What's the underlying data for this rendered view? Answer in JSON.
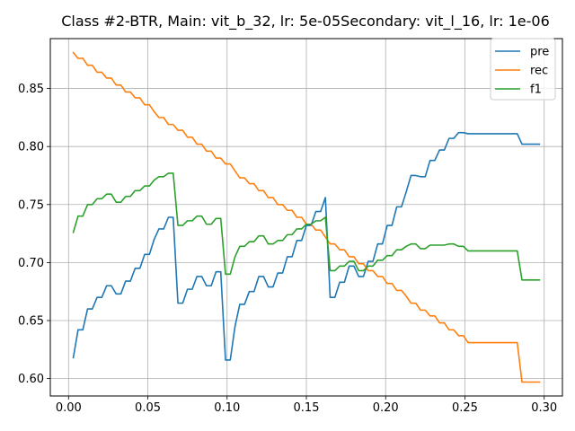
{
  "chart_data": {
    "type": "line",
    "title": "Class #2-BTR, Main: vit_b_32, lr: 5e-05Secondary: vit_l_16, lr: 1e-06",
    "xlabel": "",
    "ylabel": "",
    "xlim": [
      -0.0115,
      0.3115
    ],
    "ylim": [
      0.585,
      0.893
    ],
    "xticks": [
      0.0,
      0.05,
      0.1,
      0.15,
      0.2,
      0.25,
      0.3
    ],
    "xtick_labels": [
      "0.00",
      "0.05",
      "0.10",
      "0.15",
      "0.20",
      "0.25",
      "0.30"
    ],
    "yticks": [
      0.6,
      0.65,
      0.7,
      0.75,
      0.8,
      0.85
    ],
    "ytick_labels": [
      "0.60",
      "0.65",
      "0.70",
      "0.75",
      "0.80",
      "0.85"
    ],
    "grid": true,
    "legend_position": "top-right",
    "series": [
      {
        "name": "pre",
        "color": "#1f77b4",
        "points": [
          [
            0.003,
            0.618
          ],
          [
            0.006,
            0.642
          ],
          [
            0.009,
            0.642
          ],
          [
            0.012,
            0.66
          ],
          [
            0.015,
            0.66
          ],
          [
            0.018,
            0.67
          ],
          [
            0.021,
            0.67
          ],
          [
            0.024,
            0.68
          ],
          [
            0.027,
            0.68
          ],
          [
            0.03,
            0.673
          ],
          [
            0.033,
            0.673
          ],
          [
            0.036,
            0.684
          ],
          [
            0.039,
            0.684
          ],
          [
            0.042,
            0.695
          ],
          [
            0.045,
            0.695
          ],
          [
            0.048,
            0.707
          ],
          [
            0.051,
            0.707
          ],
          [
            0.054,
            0.72
          ],
          [
            0.057,
            0.729
          ],
          [
            0.06,
            0.729
          ],
          [
            0.063,
            0.739
          ],
          [
            0.066,
            0.739
          ],
          [
            0.069,
            0.665
          ],
          [
            0.072,
            0.665
          ],
          [
            0.075,
            0.677
          ],
          [
            0.078,
            0.677
          ],
          [
            0.081,
            0.688
          ],
          [
            0.084,
            0.688
          ],
          [
            0.087,
            0.68
          ],
          [
            0.09,
            0.68
          ],
          [
            0.093,
            0.692
          ],
          [
            0.096,
            0.692
          ],
          [
            0.099,
            0.616
          ],
          [
            0.102,
            0.616
          ],
          [
            0.105,
            0.645
          ],
          [
            0.108,
            0.664
          ],
          [
            0.111,
            0.664
          ],
          [
            0.114,
            0.675
          ],
          [
            0.117,
            0.675
          ],
          [
            0.12,
            0.688
          ],
          [
            0.123,
            0.688
          ],
          [
            0.126,
            0.679
          ],
          [
            0.129,
            0.679
          ],
          [
            0.132,
            0.691
          ],
          [
            0.135,
            0.691
          ],
          [
            0.138,
            0.705
          ],
          [
            0.141,
            0.705
          ],
          [
            0.144,
            0.719
          ],
          [
            0.147,
            0.719
          ],
          [
            0.15,
            0.732
          ],
          [
            0.153,
            0.732
          ],
          [
            0.156,
            0.744
          ],
          [
            0.159,
            0.744
          ],
          [
            0.162,
            0.756
          ],
          [
            0.165,
            0.67
          ],
          [
            0.168,
            0.67
          ],
          [
            0.171,
            0.683
          ],
          [
            0.174,
            0.683
          ],
          [
            0.177,
            0.697
          ],
          [
            0.18,
            0.697
          ],
          [
            0.183,
            0.688
          ],
          [
            0.186,
            0.688
          ],
          [
            0.189,
            0.701
          ],
          [
            0.192,
            0.701
          ],
          [
            0.195,
            0.716
          ],
          [
            0.198,
            0.716
          ],
          [
            0.201,
            0.732
          ],
          [
            0.204,
            0.732
          ],
          [
            0.207,
            0.748
          ],
          [
            0.21,
            0.748
          ],
          [
            0.213,
            0.761
          ],
          [
            0.216,
            0.775
          ],
          [
            0.219,
            0.775
          ],
          [
            0.222,
            0.774
          ],
          [
            0.225,
            0.774
          ],
          [
            0.228,
            0.788
          ],
          [
            0.231,
            0.788
          ],
          [
            0.234,
            0.797
          ],
          [
            0.237,
            0.797
          ],
          [
            0.24,
            0.807
          ],
          [
            0.243,
            0.807
          ],
          [
            0.246,
            0.812
          ],
          [
            0.249,
            0.812
          ],
          [
            0.252,
            0.811
          ],
          [
            0.256,
            0.811
          ],
          [
            0.26,
            0.811
          ],
          [
            0.265,
            0.811
          ],
          [
            0.27,
            0.811
          ],
          [
            0.275,
            0.811
          ],
          [
            0.28,
            0.811
          ],
          [
            0.283,
            0.811
          ],
          [
            0.286,
            0.802
          ],
          [
            0.29,
            0.802
          ],
          [
            0.294,
            0.802
          ],
          [
            0.297,
            0.802
          ]
        ]
      },
      {
        "name": "rec",
        "color": "#ff7f0e",
        "points": [
          [
            0.003,
            0.881
          ],
          [
            0.006,
            0.876
          ],
          [
            0.009,
            0.876
          ],
          [
            0.012,
            0.87
          ],
          [
            0.015,
            0.87
          ],
          [
            0.018,
            0.864
          ],
          [
            0.021,
            0.864
          ],
          [
            0.024,
            0.859
          ],
          [
            0.027,
            0.859
          ],
          [
            0.03,
            0.853
          ],
          [
            0.033,
            0.853
          ],
          [
            0.036,
            0.847
          ],
          [
            0.039,
            0.847
          ],
          [
            0.042,
            0.842
          ],
          [
            0.045,
            0.842
          ],
          [
            0.048,
            0.836
          ],
          [
            0.051,
            0.836
          ],
          [
            0.054,
            0.83
          ],
          [
            0.057,
            0.825
          ],
          [
            0.06,
            0.825
          ],
          [
            0.063,
            0.819
          ],
          [
            0.066,
            0.819
          ],
          [
            0.069,
            0.814
          ],
          [
            0.072,
            0.814
          ],
          [
            0.075,
            0.808
          ],
          [
            0.078,
            0.808
          ],
          [
            0.081,
            0.802
          ],
          [
            0.084,
            0.802
          ],
          [
            0.087,
            0.796
          ],
          [
            0.09,
            0.796
          ],
          [
            0.093,
            0.79
          ],
          [
            0.096,
            0.79
          ],
          [
            0.099,
            0.785
          ],
          [
            0.102,
            0.785
          ],
          [
            0.105,
            0.779
          ],
          [
            0.108,
            0.773
          ],
          [
            0.111,
            0.773
          ],
          [
            0.114,
            0.768
          ],
          [
            0.117,
            0.768
          ],
          [
            0.12,
            0.762
          ],
          [
            0.123,
            0.762
          ],
          [
            0.126,
            0.756
          ],
          [
            0.129,
            0.756
          ],
          [
            0.132,
            0.75
          ],
          [
            0.135,
            0.75
          ],
          [
            0.138,
            0.745
          ],
          [
            0.141,
            0.745
          ],
          [
            0.144,
            0.739
          ],
          [
            0.147,
            0.739
          ],
          [
            0.15,
            0.733
          ],
          [
            0.153,
            0.733
          ],
          [
            0.156,
            0.728
          ],
          [
            0.159,
            0.728
          ],
          [
            0.162,
            0.722
          ],
          [
            0.165,
            0.716
          ],
          [
            0.168,
            0.716
          ],
          [
            0.171,
            0.711
          ],
          [
            0.174,
            0.711
          ],
          [
            0.177,
            0.705
          ],
          [
            0.18,
            0.705
          ],
          [
            0.183,
            0.699
          ],
          [
            0.186,
            0.699
          ],
          [
            0.189,
            0.693
          ],
          [
            0.192,
            0.693
          ],
          [
            0.195,
            0.688
          ],
          [
            0.198,
            0.688
          ],
          [
            0.201,
            0.682
          ],
          [
            0.204,
            0.682
          ],
          [
            0.207,
            0.676
          ],
          [
            0.21,
            0.676
          ],
          [
            0.213,
            0.671
          ],
          [
            0.216,
            0.665
          ],
          [
            0.219,
            0.665
          ],
          [
            0.222,
            0.659
          ],
          [
            0.225,
            0.659
          ],
          [
            0.228,
            0.654
          ],
          [
            0.231,
            0.654
          ],
          [
            0.234,
            0.648
          ],
          [
            0.237,
            0.648
          ],
          [
            0.24,
            0.642
          ],
          [
            0.243,
            0.642
          ],
          [
            0.246,
            0.637
          ],
          [
            0.249,
            0.637
          ],
          [
            0.252,
            0.631
          ],
          [
            0.256,
            0.631
          ],
          [
            0.26,
            0.631
          ],
          [
            0.265,
            0.631
          ],
          [
            0.27,
            0.631
          ],
          [
            0.275,
            0.631
          ],
          [
            0.28,
            0.631
          ],
          [
            0.283,
            0.631
          ],
          [
            0.286,
            0.597
          ],
          [
            0.29,
            0.597
          ],
          [
            0.294,
            0.597
          ],
          [
            0.297,
            0.597
          ]
        ]
      },
      {
        "name": "f1",
        "color": "#2ca02c",
        "points": [
          [
            0.003,
            0.726
          ],
          [
            0.006,
            0.74
          ],
          [
            0.009,
            0.74
          ],
          [
            0.012,
            0.75
          ],
          [
            0.015,
            0.75
          ],
          [
            0.018,
            0.755
          ],
          [
            0.021,
            0.755
          ],
          [
            0.024,
            0.759
          ],
          [
            0.027,
            0.759
          ],
          [
            0.03,
            0.752
          ],
          [
            0.033,
            0.752
          ],
          [
            0.036,
            0.757
          ],
          [
            0.039,
            0.757
          ],
          [
            0.042,
            0.762
          ],
          [
            0.045,
            0.762
          ],
          [
            0.048,
            0.766
          ],
          [
            0.051,
            0.766
          ],
          [
            0.054,
            0.771
          ],
          [
            0.057,
            0.774
          ],
          [
            0.06,
            0.774
          ],
          [
            0.063,
            0.777
          ],
          [
            0.066,
            0.777
          ],
          [
            0.069,
            0.732
          ],
          [
            0.072,
            0.732
          ],
          [
            0.075,
            0.736
          ],
          [
            0.078,
            0.736
          ],
          [
            0.081,
            0.74
          ],
          [
            0.084,
            0.74
          ],
          [
            0.087,
            0.733
          ],
          [
            0.09,
            0.733
          ],
          [
            0.093,
            0.738
          ],
          [
            0.096,
            0.738
          ],
          [
            0.099,
            0.69
          ],
          [
            0.102,
            0.69
          ],
          [
            0.105,
            0.705
          ],
          [
            0.108,
            0.714
          ],
          [
            0.111,
            0.714
          ],
          [
            0.114,
            0.718
          ],
          [
            0.117,
            0.718
          ],
          [
            0.12,
            0.723
          ],
          [
            0.123,
            0.723
          ],
          [
            0.126,
            0.716
          ],
          [
            0.129,
            0.716
          ],
          [
            0.132,
            0.719
          ],
          [
            0.135,
            0.719
          ],
          [
            0.138,
            0.724
          ],
          [
            0.141,
            0.724
          ],
          [
            0.144,
            0.729
          ],
          [
            0.147,
            0.729
          ],
          [
            0.15,
            0.733
          ],
          [
            0.153,
            0.733
          ],
          [
            0.156,
            0.736
          ],
          [
            0.159,
            0.736
          ],
          [
            0.162,
            0.739
          ],
          [
            0.165,
            0.693
          ],
          [
            0.168,
            0.693
          ],
          [
            0.171,
            0.697
          ],
          [
            0.174,
            0.697
          ],
          [
            0.177,
            0.701
          ],
          [
            0.18,
            0.701
          ],
          [
            0.183,
            0.693
          ],
          [
            0.186,
            0.693
          ],
          [
            0.189,
            0.697
          ],
          [
            0.192,
            0.697
          ],
          [
            0.195,
            0.702
          ],
          [
            0.198,
            0.702
          ],
          [
            0.201,
            0.706
          ],
          [
            0.204,
            0.706
          ],
          [
            0.207,
            0.711
          ],
          [
            0.21,
            0.711
          ],
          [
            0.213,
            0.714
          ],
          [
            0.216,
            0.716
          ],
          [
            0.219,
            0.716
          ],
          [
            0.222,
            0.712
          ],
          [
            0.225,
            0.712
          ],
          [
            0.228,
            0.715
          ],
          [
            0.231,
            0.715
          ],
          [
            0.234,
            0.715
          ],
          [
            0.237,
            0.715
          ],
          [
            0.24,
            0.716
          ],
          [
            0.243,
            0.716
          ],
          [
            0.246,
            0.714
          ],
          [
            0.249,
            0.714
          ],
          [
            0.252,
            0.71
          ],
          [
            0.256,
            0.71
          ],
          [
            0.26,
            0.71
          ],
          [
            0.265,
            0.71
          ],
          [
            0.27,
            0.71
          ],
          [
            0.275,
            0.71
          ],
          [
            0.28,
            0.71
          ],
          [
            0.283,
            0.71
          ],
          [
            0.286,
            0.685
          ],
          [
            0.29,
            0.685
          ],
          [
            0.294,
            0.685
          ],
          [
            0.297,
            0.685
          ]
        ]
      }
    ]
  }
}
